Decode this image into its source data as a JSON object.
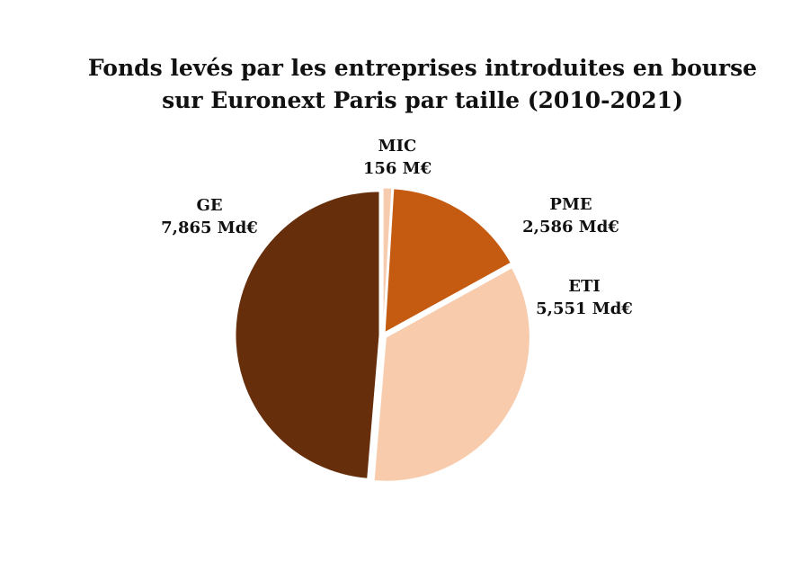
{
  "chart_data": {
    "type": "pie",
    "title_lines": [
      "Fonds levés par les entreprises introduites en bourse",
      "sur Euronext Paris par taille (2010-2021)"
    ],
    "slices": [
      {
        "name": "MIC",
        "value_label": "156 M€",
        "value": 0.156,
        "unit": "Md€",
        "color": "#F6CBAE"
      },
      {
        "name": "PME",
        "value_label": "2,586 Md€",
        "value": 2.586,
        "unit": "Md€",
        "color": "#C55A11"
      },
      {
        "name": "ETI",
        "value_label": "5,551 Md€",
        "value": 5.551,
        "unit": "Md€",
        "color": "#F8CBAD"
      },
      {
        "name": "GE",
        "value_label": "7,865 Md€",
        "value": 7.865,
        "unit": "Md€",
        "color": "#662E0B"
      }
    ],
    "start_angle": "top",
    "direction": "clockwise",
    "explode": "all",
    "legend": "none"
  }
}
